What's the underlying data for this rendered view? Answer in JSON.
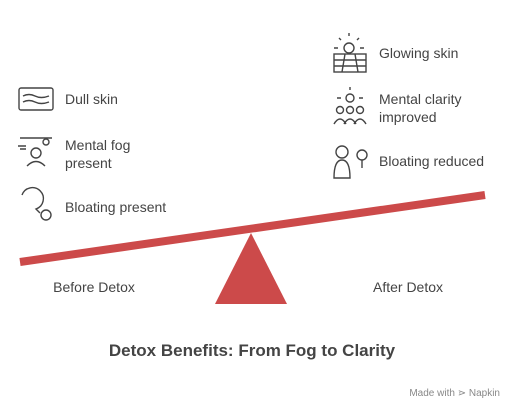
{
  "title": "Detox Benefits: From Fog to Clarity",
  "before": {
    "label": "Before Detox",
    "items": [
      "Dull skin",
      "Mental fog present",
      "Bloating present"
    ]
  },
  "after": {
    "label": "After Detox",
    "items": [
      "Glowing skin",
      "Mental clarity improved",
      "Bloating reduced"
    ]
  },
  "footer": {
    "prefix": "Made with",
    "brand": "Napkin"
  }
}
